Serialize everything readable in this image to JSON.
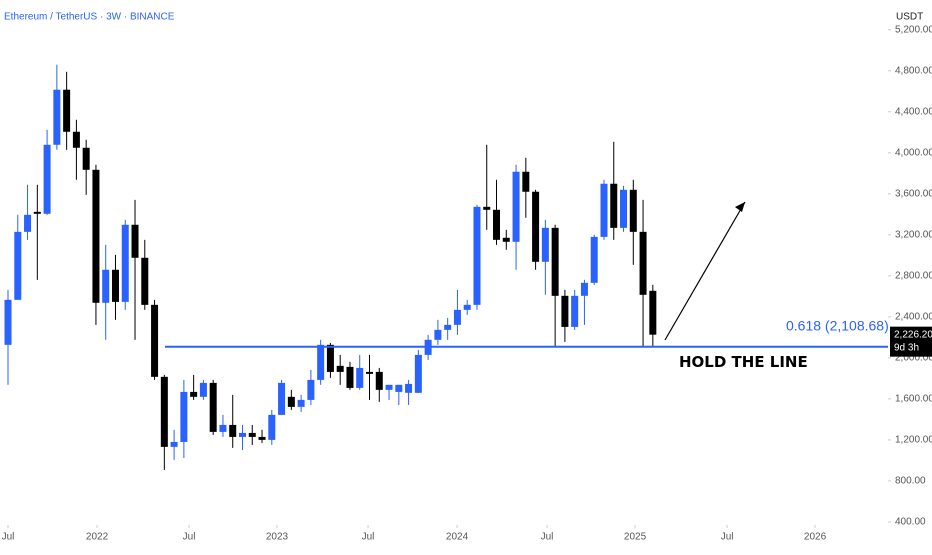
{
  "chart_data": {
    "type": "candlestick",
    "title": "Ethereum / TetherUS · 3W · BINANCE",
    "currency": "USDT",
    "up_color": "#2962ff",
    "down_color": "#000000",
    "ohlc": [
      [
        2127,
        2663,
        1737,
        2566
      ],
      [
        2566,
        3395,
        2566,
        3229
      ],
      [
        3229,
        3688,
        3151,
        3395
      ],
      [
        3424,
        3688,
        2761,
        3405
      ],
      [
        3405,
        4224,
        3395,
        4078
      ],
      [
        4078,
        4859,
        4029,
        4615
      ],
      [
        4615,
        4790,
        4029,
        4205
      ],
      [
        4205,
        4322,
        3737,
        4049
      ],
      [
        4049,
        4127,
        3590,
        3834
      ],
      [
        3834,
        3883,
        2322,
        2537
      ],
      [
        2537,
        3102,
        2176,
        2859
      ],
      [
        2859,
        3005,
        2371,
        2546
      ],
      [
        2546,
        3346,
        2468,
        3298
      ],
      [
        3298,
        3541,
        2176,
        2976
      ],
      [
        2976,
        3151,
        2468,
        2517
      ],
      [
        2517,
        2566,
        1785,
        1815
      ],
      [
        1815,
        1834,
        907,
        1132
      ],
      [
        1132,
        1298,
        1005,
        1180
      ],
      [
        1180,
        1785,
        1024,
        1668
      ],
      [
        1668,
        1834,
        1590,
        1620
      ],
      [
        1620,
        1785,
        1590,
        1756
      ],
      [
        1756,
        1785,
        1249,
        1278
      ],
      [
        1278,
        1444,
        1229,
        1346
      ],
      [
        1346,
        1639,
        1122,
        1229
      ],
      [
        1229,
        1346,
        1102,
        1268
      ],
      [
        1268,
        1346,
        1151,
        1229
      ],
      [
        1229,
        1298,
        1171,
        1200
      ],
      [
        1200,
        1493,
        1151,
        1444
      ],
      [
        1444,
        1785,
        1444,
        1756
      ],
      [
        1620,
        1688,
        1493,
        1522
      ],
      [
        1522,
        1639,
        1473,
        1590
      ],
      [
        1590,
        1883,
        1541,
        1785
      ],
      [
        1785,
        2176,
        1737,
        2127
      ],
      [
        2127,
        2146,
        1805,
        1863
      ],
      [
        1922,
        2029,
        1737,
        1863
      ],
      [
        1912,
        1961,
        1688,
        1707
      ],
      [
        1707,
        2029,
        1688,
        1902
      ],
      [
        1863,
        2029,
        1590,
        1844
      ],
      [
        1863,
        1902,
        1571,
        1688
      ],
      [
        1688,
        1737,
        1590,
        1737
      ],
      [
        1668,
        1737,
        1541,
        1737
      ],
      [
        1659,
        1785,
        1541,
        1746
      ],
      [
        1659,
        2078,
        1659,
        2029
      ],
      [
        2029,
        2224,
        1980,
        2176
      ],
      [
        2176,
        2371,
        2127,
        2273
      ],
      [
        2273,
        2390,
        2176,
        2322
      ],
      [
        2322,
        2663,
        2224,
        2468
      ],
      [
        2468,
        2566,
        2420,
        2517
      ],
      [
        2517,
        3493,
        2468,
        3473
      ],
      [
        3473,
        4078,
        3249,
        3444
      ],
      [
        3444,
        3737,
        3102,
        3151
      ],
      [
        3171,
        3249,
        3054,
        3132
      ],
      [
        3132,
        3883,
        2859,
        3815
      ],
      [
        3815,
        3951,
        3366,
        3620
      ],
      [
        3620,
        3639,
        2859,
        2937
      ],
      [
        2937,
        3346,
        2615,
        3268
      ],
      [
        3268,
        3298,
        2107,
        2605
      ],
      [
        2605,
        2663,
        2156,
        2302
      ],
      [
        2302,
        2663,
        2273,
        2605
      ],
      [
        2605,
        2761,
        2322,
        2732
      ],
      [
        2732,
        3200,
        2712,
        3180
      ],
      [
        3180,
        3737,
        3151,
        3698
      ],
      [
        3698,
        4107,
        3151,
        3268
      ],
      [
        3268,
        3678,
        3229,
        3639
      ],
      [
        3639,
        3737,
        2907,
        3229
      ],
      [
        3229,
        3541,
        2107,
        2615
      ],
      [
        2654,
        2712,
        2107,
        2226.2
      ]
    ],
    "xlim": [
      -0.82,
      90.07
    ],
    "xticks": [
      {
        "value": 0,
        "label": "Jul"
      },
      {
        "value": 9.11,
        "label": "2022"
      },
      {
        "value": 18.53,
        "label": "Jul"
      },
      {
        "value": 27.53,
        "label": "2023"
      },
      {
        "value": 36.85,
        "label": "Jul"
      },
      {
        "value": 45.96,
        "label": "2024"
      },
      {
        "value": 55.17,
        "label": "Jul"
      },
      {
        "value": 64.18,
        "label": "2025"
      },
      {
        "value": 73.6,
        "label": "Jul"
      },
      {
        "value": 82.6,
        "label": "2026"
      }
    ],
    "ylim": [
      370,
      5490
    ],
    "yticks": [
      {
        "value": 400,
        "label": "400.00"
      },
      {
        "value": 800,
        "label": "800.00"
      },
      {
        "value": 1200,
        "label": "1,200.00"
      },
      {
        "value": 1600,
        "label": "1,600.00"
      },
      {
        "value": 2000,
        "label": "2,000.00"
      },
      {
        "value": 2400,
        "label": "2,400.00"
      },
      {
        "value": 2800,
        "label": "2,800.00"
      },
      {
        "value": 3200,
        "label": "3,200.00"
      },
      {
        "value": 3600,
        "label": "3,600.00"
      },
      {
        "value": 4000,
        "label": "4,000.00"
      },
      {
        "value": 4400,
        "label": "4,400.00"
      },
      {
        "value": 4800,
        "label": "4,800.00"
      },
      {
        "value": 5200,
        "label": "5,200.00"
      }
    ],
    "level": {
      "value": 2108.68,
      "label": "0.618 (2,108.68)",
      "color": "#2962ff"
    },
    "last_price": {
      "value": 2226.2,
      "label": "2,226.20"
    },
    "countdown": "9d 3h",
    "annotation": "HOLD THE LINE"
  }
}
